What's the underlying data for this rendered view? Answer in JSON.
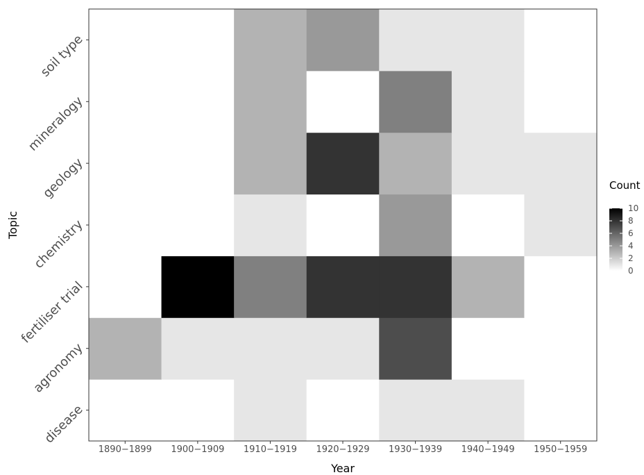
{
  "chart_data": {
    "type": "heatmap",
    "title": "",
    "xlabel": "Year",
    "ylabel": "Topic",
    "x_categories": [
      "1890−1899",
      "1900−1909",
      "1910−1919",
      "1920−1929",
      "1930−1939",
      "1940−1949",
      "1950−1959"
    ],
    "y_categories": [
      "disease",
      "agronomy",
      "fertiliser trial",
      "chemistry",
      "geology",
      "mineralogy",
      "soil type"
    ],
    "values": [
      [
        0,
        0,
        1,
        0,
        1,
        1,
        0
      ],
      [
        3,
        1,
        1,
        1,
        7,
        0,
        0
      ],
      [
        0,
        10,
        5,
        8,
        8,
        3,
        0
      ],
      [
        0,
        0,
        1,
        0,
        4,
        0,
        1
      ],
      [
        0,
        0,
        3,
        8,
        3,
        1,
        1
      ],
      [
        0,
        0,
        3,
        0,
        5,
        1,
        0
      ],
      [
        0,
        0,
        3,
        4,
        1,
        1,
        0
      ]
    ],
    "legend": {
      "title": "Count",
      "ticks": [
        0,
        2,
        4,
        6,
        8,
        10
      ],
      "range": [
        0,
        10
      ],
      "low_color": "#ffffff",
      "high_color": "#000000",
      "placement": "right"
    },
    "grid": false
  }
}
